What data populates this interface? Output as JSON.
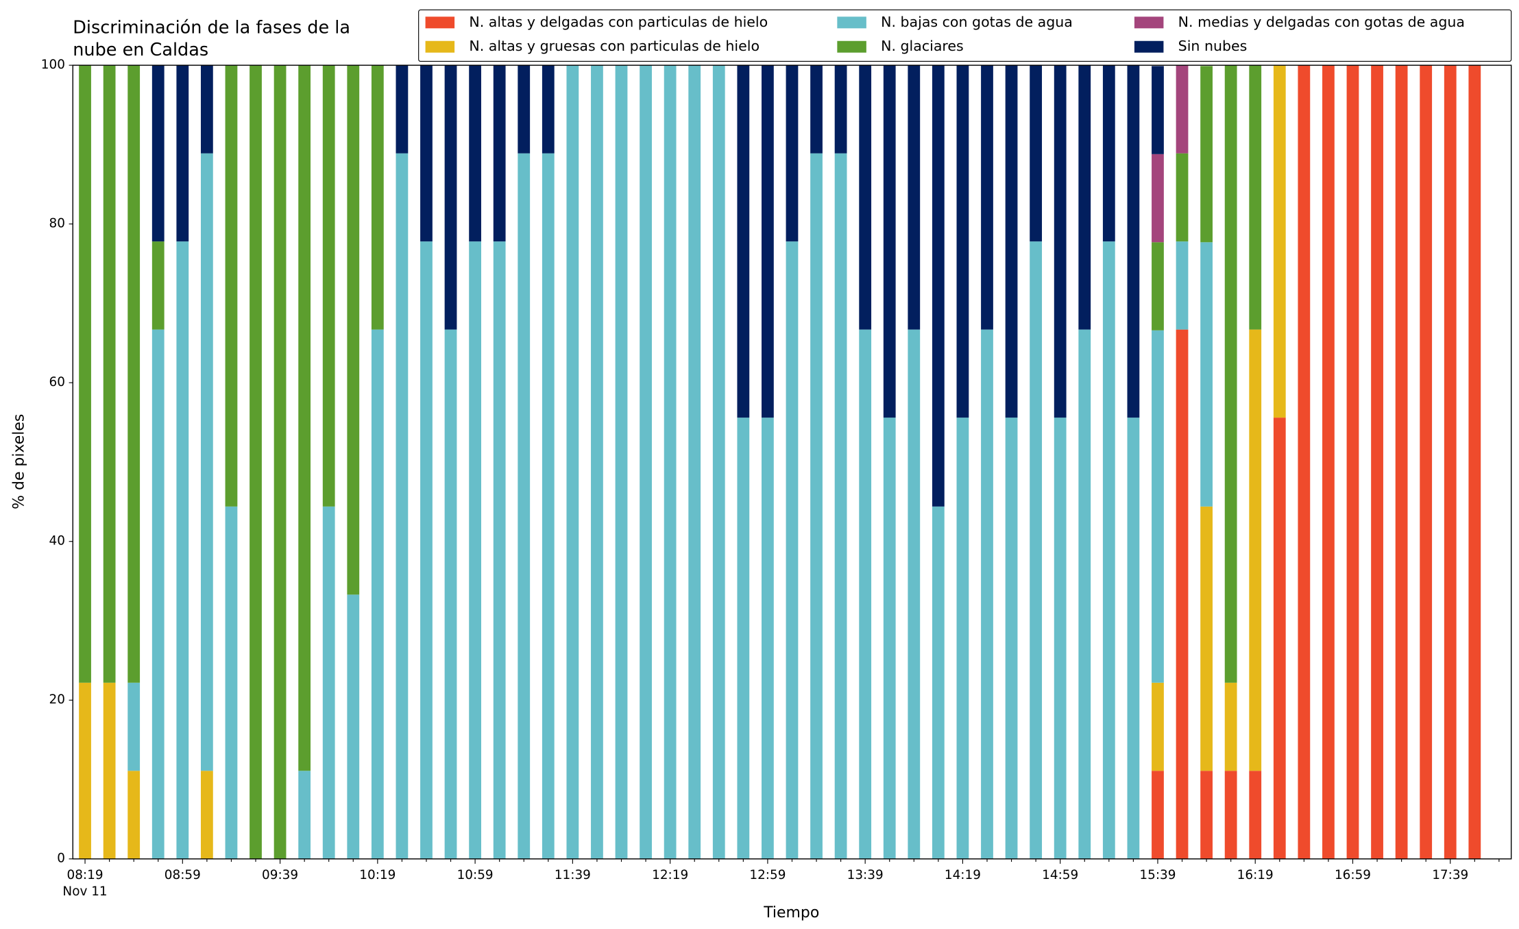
{
  "chart_data": {
    "type": "stacked_bar",
    "title": [
      "Discriminación de la fases de la",
      "nube en Caldas"
    ],
    "xlabel": "Tiempo",
    "ylabel": "% de pixeles",
    "x_date_label": "Nov 11",
    "categories": [
      "08:19",
      null,
      null,
      null,
      "08:59",
      null,
      null,
      null,
      "09:39",
      null,
      null,
      null,
      "10:19",
      null,
      null,
      null,
      "10:59",
      null,
      null,
      null,
      "11:39",
      null,
      null,
      null,
      "12:19",
      null,
      null,
      null,
      "12:59",
      null,
      null,
      null,
      "13:39",
      null,
      null,
      null,
      "14:19",
      null,
      null,
      null,
      "14:59",
      null,
      null,
      null,
      "15:39",
      null,
      null,
      null,
      "16:19",
      null,
      null,
      null,
      "16:59",
      null,
      null,
      null,
      "17:39",
      null
    ],
    "ylim": [
      0,
      100
    ],
    "yticks": [
      0,
      20,
      40,
      60,
      80,
      100
    ],
    "legend": "upper right",
    "series": [
      {
        "name": "N. altas y delgadas con particulas de hielo",
        "color": "#ef4b2c",
        "values": [
          0,
          0,
          0,
          0,
          0,
          0,
          0,
          0,
          0,
          0,
          0,
          0,
          0,
          0,
          0,
          0,
          0,
          0,
          0,
          0,
          0,
          0,
          0,
          0,
          0,
          0,
          0,
          0,
          0,
          0,
          0,
          0,
          0,
          0,
          0,
          0,
          0,
          0,
          0,
          0,
          0,
          0,
          0,
          0,
          11.1,
          66.7,
          11.1,
          11.1,
          11.1,
          55.6,
          100,
          100,
          100,
          100,
          100,
          100,
          100,
          100
        ]
      },
      {
        "name": "N. altas y gruesas con particulas de hielo",
        "color": "#e6b81a",
        "values": [
          22.2,
          22.2,
          11.1,
          0,
          0,
          11.1,
          0,
          0,
          0,
          0,
          0,
          0,
          0,
          0,
          0,
          0,
          0,
          0,
          0,
          0,
          0,
          0,
          0,
          0,
          0,
          0,
          0,
          0,
          0,
          0,
          0,
          0,
          0,
          0,
          0,
          0,
          0,
          0,
          0,
          0,
          0,
          0,
          0,
          0,
          11.1,
          0,
          33.3,
          11.1,
          55.6,
          44.4,
          0,
          0,
          0,
          0,
          0,
          0,
          0,
          0
        ]
      },
      {
        "name": "N. bajas con gotas de agua",
        "color": "#67bec9",
        "values": [
          0,
          0,
          11.1,
          66.7,
          77.8,
          77.8,
          44.4,
          0,
          0,
          11.1,
          44.4,
          33.3,
          66.7,
          88.9,
          77.8,
          66.7,
          77.8,
          77.8,
          88.9,
          88.9,
          100,
          100,
          100,
          100,
          100,
          100,
          100,
          55.6,
          55.6,
          77.8,
          88.9,
          88.9,
          66.7,
          55.6,
          66.7,
          44.4,
          55.6,
          66.7,
          55.6,
          77.8,
          55.6,
          66.7,
          77.8,
          55.6,
          44.4,
          11.1,
          33.3,
          0,
          0,
          0,
          0,
          0,
          0,
          0,
          0,
          0,
          0,
          0
        ]
      },
      {
        "name": "N. glaciares",
        "color": "#5c9e2e",
        "values": [
          77.8,
          77.8,
          77.8,
          11.1,
          0,
          0,
          55.6,
          100,
          100,
          88.9,
          55.6,
          66.7,
          33.3,
          0,
          0,
          0,
          0,
          0,
          0,
          0,
          0,
          0,
          0,
          0,
          0,
          0,
          0,
          0,
          0,
          0,
          0,
          0,
          0,
          0,
          0,
          0,
          0,
          0,
          0,
          0,
          0,
          0,
          0,
          0,
          11.1,
          11.1,
          22.2,
          77.8,
          33.3,
          0,
          0,
          0,
          0,
          0,
          0,
          0,
          0,
          0
        ]
      },
      {
        "name": "N. medias y delgadas con gotas de agua",
        "color": "#a4457c",
        "values": [
          0,
          0,
          0,
          0,
          0,
          0,
          0,
          0,
          0,
          0,
          0,
          0,
          0,
          0,
          0,
          0,
          0,
          0,
          0,
          0,
          0,
          0,
          0,
          0,
          0,
          0,
          0,
          0,
          0,
          0,
          0,
          0,
          0,
          0,
          0,
          0,
          0,
          0,
          0,
          0,
          0,
          0,
          0,
          0,
          11.1,
          11.1,
          0,
          0,
          0,
          0,
          0,
          0,
          0,
          0,
          0,
          0,
          0,
          0
        ]
      },
      {
        "name": "Sin nubes",
        "color": "#021f5e",
        "values": [
          0,
          0,
          0,
          22.2,
          22.2,
          11.1,
          0,
          0,
          0,
          0,
          0,
          0,
          0,
          11.1,
          22.2,
          33.3,
          22.2,
          22.2,
          11.1,
          11.1,
          0,
          0,
          0,
          0,
          0,
          0,
          0,
          44.4,
          44.4,
          22.2,
          11.1,
          11.1,
          33.3,
          44.4,
          33.3,
          55.6,
          44.4,
          33.3,
          44.4,
          22.2,
          44.4,
          33.3,
          22.2,
          44.4,
          11.1,
          0,
          0,
          0,
          0,
          0,
          0,
          0,
          0,
          0,
          0,
          0,
          0,
          0
        ]
      }
    ]
  }
}
